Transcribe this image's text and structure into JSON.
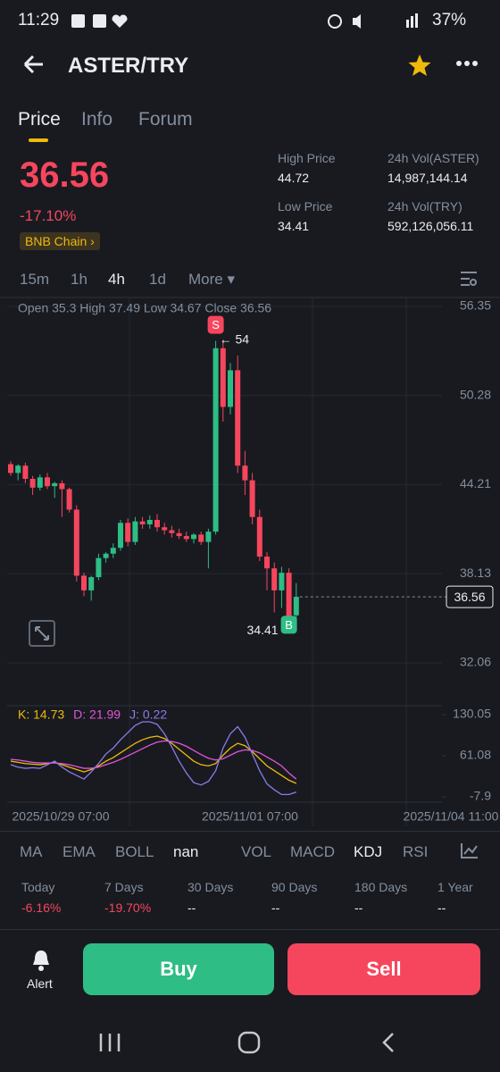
{
  "status_bar": {
    "time": "11:29",
    "battery": "37%"
  },
  "header": {
    "title": "ASTER/TRY"
  },
  "tabs": [
    "Price",
    "Info",
    "Forum"
  ],
  "summary": {
    "price": "36.56",
    "change": "-17.10%",
    "network": "BNB Chain",
    "stats": [
      {
        "label": "High Price",
        "value": "44.72"
      },
      {
        "label": "24h Vol(ASTER)",
        "value": "14,987,144.14"
      },
      {
        "label": "Low Price",
        "value": "34.41"
      },
      {
        "label": "24h Vol(TRY)",
        "value": "592,126,056.11"
      }
    ]
  },
  "intervals": [
    "15m",
    "1h",
    "4h",
    "1d",
    "More"
  ],
  "chart_data": [
    {
      "type": "candlestick",
      "legend": "Open 35.3 High 37.49 Low 34.67 Close 36.56",
      "open": [
        45.6,
        45.0,
        45.5,
        44.6,
        44.0,
        44.7,
        44.1,
        44.3,
        43.9,
        42.5,
        38.0,
        37.0,
        37.9,
        39.2,
        39.5,
        39.9,
        41.6,
        40.3,
        41.7,
        41.5,
        41.8,
        41.3,
        41.1,
        40.9,
        40.7,
        40.5,
        40.8,
        40.3,
        41.0,
        53.5,
        49.5,
        52.0,
        45.5,
        44.5,
        42.0,
        39.3,
        38.5,
        37.0,
        38.2,
        35.3
      ],
      "high": [
        45.8,
        45.6,
        45.7,
        44.8,
        44.9,
        45.0,
        44.4,
        44.5,
        44.0,
        42.8,
        38.2,
        38.0,
        39.5,
        39.6,
        40.2,
        41.8,
        41.9,
        42.0,
        42.0,
        42.1,
        42.2,
        41.6,
        41.4,
        41.2,
        41.0,
        40.9,
        41.0,
        41.2,
        54.0,
        54.0,
        52.5,
        53.0,
        46.5,
        45.0,
        42.5,
        39.6,
        38.9,
        38.6,
        38.5,
        37.49
      ],
      "low": [
        44.8,
        44.5,
        44.3,
        43.5,
        43.8,
        43.9,
        43.3,
        42.0,
        42.3,
        37.6,
        36.6,
        36.3,
        37.7,
        38.9,
        39.2,
        39.7,
        40.0,
        40.1,
        41.2,
        41.2,
        41.0,
        40.8,
        40.6,
        40.5,
        40.3,
        40.2,
        40.1,
        38.5,
        40.8,
        48.5,
        49.0,
        45.0,
        43.5,
        41.5,
        39.0,
        37.0,
        35.5,
        35.8,
        34.41,
        34.67
      ],
      "close": [
        45.0,
        45.5,
        44.6,
        44.0,
        44.7,
        44.1,
        44.3,
        43.9,
        42.5,
        38.0,
        37.0,
        37.9,
        39.2,
        39.5,
        39.9,
        41.6,
        40.3,
        41.7,
        41.5,
        41.8,
        41.3,
        41.1,
        40.9,
        40.7,
        40.5,
        40.8,
        40.3,
        41.0,
        53.5,
        49.5,
        52.0,
        45.5,
        44.5,
        42.0,
        39.3,
        38.5,
        37.0,
        38.2,
        35.2,
        36.56
      ],
      "ylim": [
        32.06,
        56.35
      ],
      "yticks": [
        56.35,
        50.28,
        44.21,
        38.13,
        32.06
      ],
      "last_price": 36.56,
      "sell_marker": {
        "label": "S",
        "text": "← 54"
      },
      "buy_marker": {
        "label": "B",
        "text": "34.41"
      },
      "up_color": "#2ebd85",
      "down_color": "#f6465d",
      "grid": true
    },
    {
      "type": "line",
      "series": [
        {
          "label": "K: 14.73",
          "color": "#f0b90b",
          "values": [
            52,
            50,
            48,
            47,
            46,
            48,
            50,
            46,
            42,
            38,
            34,
            38,
            44,
            52,
            58,
            66,
            74,
            82,
            88,
            92,
            94,
            90,
            82,
            72,
            62,
            52,
            46,
            44,
            48,
            62,
            74,
            82,
            78,
            68,
            56,
            44,
            36,
            28,
            20,
            14.73
          ]
        },
        {
          "label": "D: 21.99",
          "color": "#e056d8",
          "values": [
            55,
            54,
            52,
            50,
            49,
            49,
            49,
            48,
            46,
            43,
            40,
            40,
            42,
            46,
            50,
            55,
            61,
            67,
            73,
            79,
            84,
            86,
            85,
            82,
            77,
            70,
            63,
            57,
            54,
            56,
            62,
            68,
            71,
            70,
            66,
            59,
            52,
            44,
            32,
            21.99
          ]
        },
        {
          "label": "J: 0.22",
          "color": "#8b7be6",
          "values": [
            46,
            42,
            40,
            41,
            40,
            46,
            52,
            42,
            34,
            28,
            22,
            34,
            48,
            64,
            74,
            88,
            100,
            112,
            118,
            118,
            114,
            98,
            76,
            52,
            32,
            16,
            12,
            18,
            36,
            74,
            98,
            110,
            92,
            64,
            36,
            14,
            4,
            -4,
            -4,
            0.22
          ]
        }
      ],
      "ylim": [
        -7.9,
        130.05
      ],
      "yticks": [
        130.05,
        61.08,
        -7.9
      ],
      "x_labels": [
        "2025/10/29 07:00",
        "2025/11/01 07:00",
        "2025/11/04 11:00"
      ]
    }
  ],
  "indicators": [
    "MA",
    "EMA",
    "BOLL",
    "nan",
    "VOL",
    "MACD",
    "KDJ",
    "RSI"
  ],
  "performance": [
    {
      "label": "Today",
      "value": "-6.16%"
    },
    {
      "label": "7 Days",
      "value": "-19.70%"
    },
    {
      "label": "30 Days",
      "value": "--"
    },
    {
      "label": "90 Days",
      "value": "--"
    },
    {
      "label": "180 Days",
      "value": "--"
    },
    {
      "label": "1 Year",
      "value": "--"
    }
  ],
  "actions": {
    "alert": "Alert",
    "buy": "Buy",
    "sell": "Sell"
  }
}
